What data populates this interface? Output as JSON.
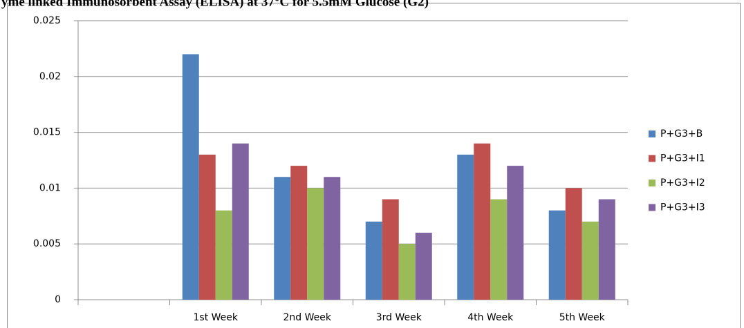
{
  "chart_data": {
    "type": "bar",
    "title": "yme linked Immunosorbent Assay (ELISA) at 37°C for 5.5mM Glucose (G2)",
    "categories": [
      null,
      "1st Week",
      "2nd Week",
      "3rd Week",
      "4th Week",
      "5th Week"
    ],
    "series": [
      {
        "name": "P+G3+B",
        "color": "#4f81bd",
        "values": [
          null,
          0.022,
          0.011,
          0.007,
          0.013,
          0.008
        ]
      },
      {
        "name": "P+G3+I1",
        "color": "#c0504d",
        "values": [
          null,
          0.013,
          0.012,
          0.009,
          0.014,
          0.01
        ]
      },
      {
        "name": "P+G3+I2",
        "color": "#9bbb59",
        "values": [
          null,
          0.008,
          0.01,
          0.005,
          0.009,
          0.007
        ]
      },
      {
        "name": "P+G3+I3",
        "color": "#8064a2",
        "values": [
          null,
          0.014,
          0.011,
          0.006,
          0.012,
          0.009
        ]
      }
    ],
    "ylim": [
      0,
      0.025
    ],
    "yticks": [
      0,
      0.005,
      0.01,
      0.015,
      0.02,
      0.025
    ],
    "grid": true,
    "legend": "right"
  }
}
